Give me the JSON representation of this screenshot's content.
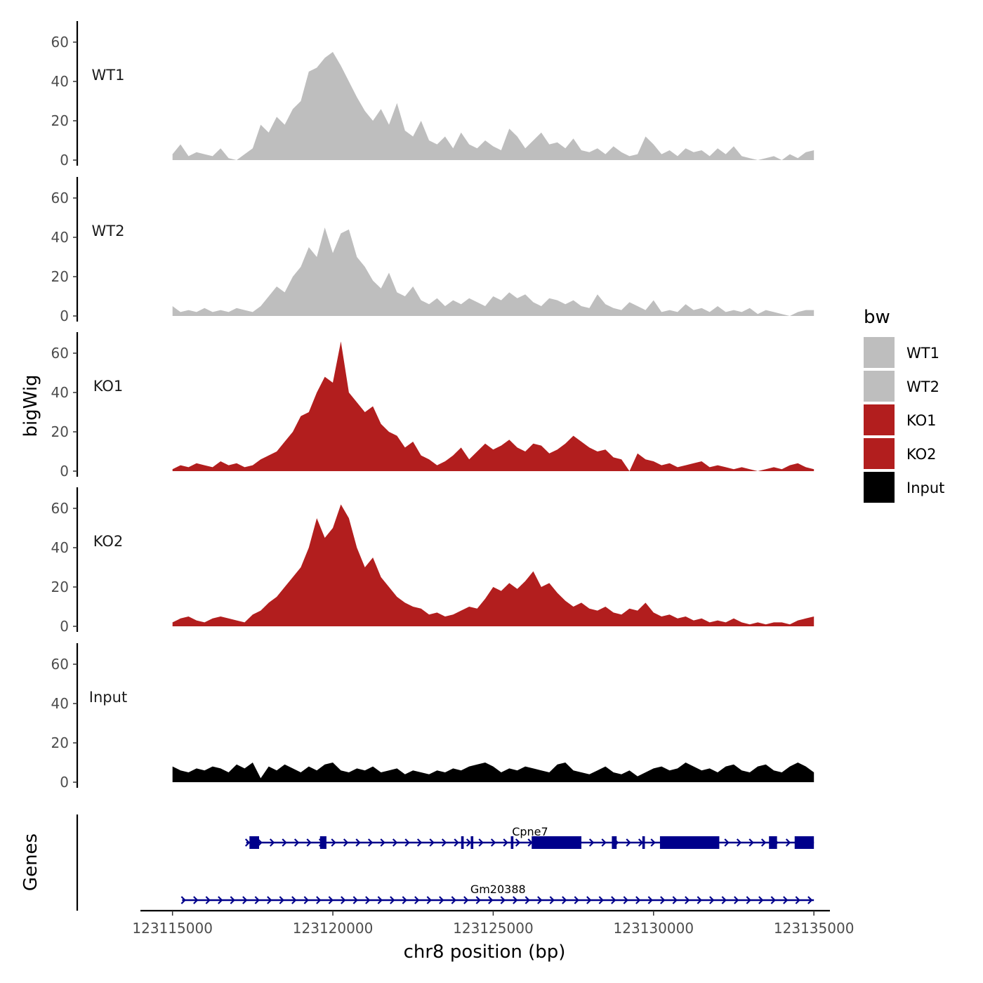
{
  "chart_data": {
    "type": "area",
    "title": "",
    "xlabel": "chr8 position (bp)",
    "ylabel": "bigWig",
    "genes_label": "Genes",
    "x_ticks": [
      123115000,
      123120000,
      123125000,
      123130000,
      123135000
    ],
    "x_tick_labels": [
      "123115000",
      "123120000",
      "123125000",
      "123130000",
      "123135000"
    ],
    "xlim": [
      123114000,
      123135500
    ],
    "ylim": [
      0,
      70
    ],
    "y_ticks": [
      0,
      20,
      40,
      60
    ],
    "y_tick_labels": [
      "0",
      "20",
      "40",
      "60"
    ],
    "legend": {
      "title": "bw",
      "position": "right",
      "items": [
        {
          "label": "WT1",
          "color": "#bebebe"
        },
        {
          "label": "WT2",
          "color": "#bebebe"
        },
        {
          "label": "KO1",
          "color": "#b21e1e"
        },
        {
          "label": "KO2",
          "color": "#b21e1e"
        },
        {
          "label": "Input",
          "color": "#000000"
        }
      ]
    },
    "series": [
      {
        "name": "WT1",
        "color": "#bebebe",
        "x": [
          123115000,
          123115250,
          123115500,
          123115750,
          123116000,
          123116250,
          123116500,
          123116750,
          123117000,
          123117250,
          123117500,
          123117750,
          123118000,
          123118250,
          123118500,
          123118750,
          123119000,
          123119250,
          123119500,
          123119750,
          123120000,
          123120250,
          123120500,
          123120750,
          123121000,
          123121250,
          123121500,
          123121750,
          123122000,
          123122250,
          123122500,
          123122750,
          123123000,
          123123250,
          123123500,
          123123750,
          123124000,
          123124250,
          123124500,
          123124750,
          123125000,
          123125250,
          123125500,
          123125750,
          123126000,
          123126250,
          123126500,
          123126750,
          123127000,
          123127250,
          123127500,
          123127750,
          123128000,
          123128250,
          123128500,
          123128750,
          123129000,
          123129250,
          123129500,
          123129750,
          123130000,
          123130250,
          123130500,
          123130750,
          123131000,
          123131250,
          123131500,
          123131750,
          123132000,
          123132250,
          123132500,
          123132750,
          123133000,
          123133250,
          123133500,
          123133750,
          123134000,
          123134250,
          123134500,
          123134750,
          123135000
        ],
        "values": [
          3,
          8,
          2,
          4,
          3,
          2,
          6,
          1,
          0,
          3,
          6,
          18,
          14,
          22,
          18,
          26,
          30,
          45,
          47,
          52,
          55,
          48,
          40,
          32,
          25,
          20,
          26,
          18,
          29,
          15,
          12,
          20,
          10,
          8,
          12,
          6,
          14,
          8,
          6,
          10,
          7,
          5,
          16,
          12,
          6,
          10,
          14,
          8,
          9,
          6,
          11,
          5,
          4,
          6,
          3,
          7,
          4,
          2,
          3,
          12,
          8,
          3,
          5,
          2,
          6,
          4,
          5,
          2,
          6,
          3,
          7,
          2,
          1,
          0,
          1,
          2,
          0,
          3,
          1,
          4,
          5
        ]
      },
      {
        "name": "WT2",
        "color": "#bebebe",
        "x": [
          123115000,
          123115250,
          123115500,
          123115750,
          123116000,
          123116250,
          123116500,
          123116750,
          123117000,
          123117250,
          123117500,
          123117750,
          123118000,
          123118250,
          123118500,
          123118750,
          123119000,
          123119250,
          123119500,
          123119750,
          123120000,
          123120250,
          123120500,
          123120750,
          123121000,
          123121250,
          123121500,
          123121750,
          123122000,
          123122250,
          123122500,
          123122750,
          123123000,
          123123250,
          123123500,
          123123750,
          123124000,
          123124250,
          123124500,
          123124750,
          123125000,
          123125250,
          123125500,
          123125750,
          123126000,
          123126250,
          123126500,
          123126750,
          123127000,
          123127250,
          123127500,
          123127750,
          123128000,
          123128250,
          123128500,
          123128750,
          123129000,
          123129250,
          123129500,
          123129750,
          123130000,
          123130250,
          123130500,
          123130750,
          123131000,
          123131250,
          123131500,
          123131750,
          123132000,
          123132250,
          123132500,
          123132750,
          123133000,
          123133250,
          123133500,
          123133750,
          123134000,
          123134250,
          123134500,
          123134750,
          123135000
        ],
        "values": [
          5,
          2,
          3,
          2,
          4,
          2,
          3,
          2,
          4,
          3,
          2,
          5,
          10,
          15,
          12,
          20,
          25,
          35,
          30,
          45,
          32,
          42,
          44,
          30,
          25,
          18,
          14,
          22,
          12,
          10,
          15,
          8,
          6,
          9,
          5,
          8,
          6,
          9,
          7,
          5,
          10,
          8,
          12,
          9,
          11,
          7,
          5,
          9,
          8,
          6,
          8,
          5,
          4,
          11,
          6,
          4,
          3,
          7,
          5,
          3,
          8,
          2,
          3,
          2,
          6,
          3,
          4,
          2,
          5,
          2,
          3,
          2,
          4,
          1,
          3,
          2,
          1,
          0,
          2,
          3,
          3
        ]
      },
      {
        "name": "KO1",
        "color": "#b21e1e",
        "x": [
          123115000,
          123115250,
          123115500,
          123115750,
          123116000,
          123116250,
          123116500,
          123116750,
          123117000,
          123117250,
          123117500,
          123117750,
          123118000,
          123118250,
          123118500,
          123118750,
          123119000,
          123119250,
          123119500,
          123119750,
          123120000,
          123120250,
          123120500,
          123120750,
          123121000,
          123121250,
          123121500,
          123121750,
          123122000,
          123122250,
          123122500,
          123122750,
          123123000,
          123123250,
          123123500,
          123123750,
          123124000,
          123124250,
          123124500,
          123124750,
          123125000,
          123125250,
          123125500,
          123125750,
          123126000,
          123126250,
          123126500,
          123126750,
          123127000,
          123127250,
          123127500,
          123127750,
          123128000,
          123128250,
          123128500,
          123128750,
          123129000,
          123129250,
          123129500,
          123129750,
          123130000,
          123130250,
          123130500,
          123130750,
          123131000,
          123131250,
          123131500,
          123131750,
          123132000,
          123132250,
          123132500,
          123132750,
          123133000,
          123133250,
          123133500,
          123133750,
          123134000,
          123134250,
          123134500,
          123134750,
          123135000
        ],
        "values": [
          1,
          3,
          2,
          4,
          3,
          2,
          5,
          3,
          4,
          2,
          3,
          6,
          8,
          10,
          15,
          20,
          28,
          30,
          40,
          48,
          45,
          66,
          40,
          35,
          30,
          33,
          24,
          20,
          18,
          12,
          15,
          8,
          6,
          3,
          5,
          8,
          12,
          6,
          10,
          14,
          11,
          13,
          16,
          12,
          10,
          14,
          13,
          9,
          11,
          14,
          18,
          15,
          12,
          10,
          11,
          7,
          6,
          0,
          9,
          6,
          5,
          3,
          4,
          2,
          3,
          4,
          5,
          2,
          3,
          2,
          1,
          2,
          1,
          0,
          1,
          2,
          1,
          3,
          4,
          2,
          1
        ]
      },
      {
        "name": "KO2",
        "color": "#b21e1e",
        "x": [
          123115000,
          123115250,
          123115500,
          123115750,
          123116000,
          123116250,
          123116500,
          123116750,
          123117000,
          123117250,
          123117500,
          123117750,
          123118000,
          123118250,
          123118500,
          123118750,
          123119000,
          123119250,
          123119500,
          123119750,
          123120000,
          123120250,
          123120500,
          123120750,
          123121000,
          123121250,
          123121500,
          123121750,
          123122000,
          123122250,
          123122500,
          123122750,
          123123000,
          123123250,
          123123500,
          123123750,
          123124000,
          123124250,
          123124500,
          123124750,
          123125000,
          123125250,
          123125500,
          123125750,
          123126000,
          123126250,
          123126500,
          123126750,
          123127000,
          123127250,
          123127500,
          123127750,
          123128000,
          123128250,
          123128500,
          123128750,
          123129000,
          123129250,
          123129500,
          123129750,
          123130000,
          123130250,
          123130500,
          123130750,
          123131000,
          123131250,
          123131500,
          123131750,
          123132000,
          123132250,
          123132500,
          123132750,
          123133000,
          123133250,
          123133500,
          123133750,
          123134000,
          123134250,
          123134500,
          123134750,
          123135000
        ],
        "values": [
          2,
          4,
          5,
          3,
          2,
          4,
          5,
          4,
          3,
          2,
          6,
          8,
          12,
          15,
          20,
          25,
          30,
          40,
          55,
          45,
          50,
          62,
          55,
          40,
          30,
          35,
          25,
          20,
          15,
          12,
          10,
          9,
          6,
          7,
          5,
          6,
          8,
          10,
          9,
          14,
          20,
          18,
          22,
          19,
          23,
          28,
          20,
          22,
          17,
          13,
          10,
          12,
          9,
          8,
          10,
          7,
          6,
          9,
          8,
          12,
          7,
          5,
          6,
          4,
          5,
          3,
          4,
          2,
          3,
          2,
          4,
          2,
          1,
          2,
          1,
          2,
          2,
          1,
          3,
          4,
          5
        ]
      },
      {
        "name": "Input",
        "color": "#000000",
        "x": [
          123115000,
          123115250,
          123115500,
          123115750,
          123116000,
          123116250,
          123116500,
          123116750,
          123117000,
          123117250,
          123117500,
          123117750,
          123118000,
          123118250,
          123118500,
          123118750,
          123119000,
          123119250,
          123119500,
          123119750,
          123120000,
          123120250,
          123120500,
          123120750,
          123121000,
          123121250,
          123121500,
          123121750,
          123122000,
          123122250,
          123122500,
          123122750,
          123123000,
          123123250,
          123123500,
          123123750,
          123124000,
          123124250,
          123124500,
          123124750,
          123125000,
          123125250,
          123125500,
          123125750,
          123126000,
          123126250,
          123126500,
          123126750,
          123127000,
          123127250,
          123127500,
          123127750,
          123128000,
          123128250,
          123128500,
          123128750,
          123129000,
          123129250,
          123129500,
          123129750,
          123130000,
          123130250,
          123130500,
          123130750,
          123131000,
          123131250,
          123131500,
          123131750,
          123132000,
          123132250,
          123132500,
          123132750,
          123133000,
          123133250,
          123133500,
          123133750,
          123134000,
          123134250,
          123134500,
          123134750,
          123135000
        ],
        "values": [
          8,
          6,
          5,
          7,
          6,
          8,
          7,
          5,
          9,
          7,
          10,
          2,
          8,
          6,
          9,
          7,
          5,
          8,
          6,
          9,
          10,
          6,
          5,
          7,
          6,
          8,
          5,
          6,
          7,
          4,
          6,
          5,
          4,
          6,
          5,
          7,
          6,
          8,
          9,
          10,
          8,
          5,
          7,
          6,
          8,
          7,
          6,
          5,
          9,
          10,
          6,
          5,
          4,
          6,
          8,
          5,
          4,
          6,
          3,
          5,
          7,
          8,
          6,
          7,
          10,
          8,
          6,
          7,
          5,
          8,
          9,
          6,
          5,
          8,
          9,
          6,
          5,
          8,
          10,
          8,
          5
        ]
      }
    ],
    "genes": [
      {
        "name": "Cpne7",
        "start": 123117300,
        "end": 123135000,
        "strand": "+",
        "exons": [
          [
            123117400,
            123117700
          ],
          [
            123119600,
            123119800
          ],
          [
            123124000,
            123124080
          ],
          [
            123124300,
            123124380
          ],
          [
            123125550,
            123125630
          ],
          [
            123126200,
            123127750
          ],
          [
            123128700,
            123128850
          ],
          [
            123129650,
            123129730
          ],
          [
            123130200,
            123132050
          ],
          [
            123133600,
            123133850
          ],
          [
            123134400,
            123135000
          ]
        ]
      },
      {
        "name": "Gm20388",
        "start": 123115300,
        "end": 123135000,
        "strand": "+",
        "exons": []
      }
    ]
  }
}
